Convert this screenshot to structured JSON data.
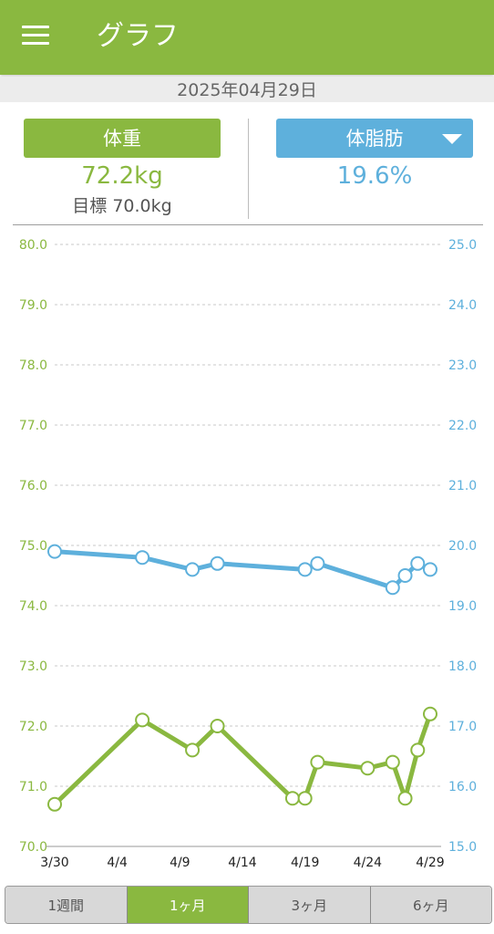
{
  "header": {
    "title": "グラフ",
    "menu_icon": "hamburger-menu-icon"
  },
  "date": "2025年04月29日",
  "metrics": {
    "weight": {
      "label": "体重",
      "value": "72.2kg",
      "target": "目標 70.0kg",
      "color": "#8ab840"
    },
    "body_fat": {
      "label": "体脂肪",
      "value": "19.6%",
      "color": "#5eb0dc",
      "dropdown_icon": "caret-down-icon"
    }
  },
  "tabs": [
    {
      "label": "1週間",
      "active": false
    },
    {
      "label": "1ヶ月",
      "active": true
    },
    {
      "label": "3ヶ月",
      "active": false
    },
    {
      "label": "6ヶ月",
      "active": false
    }
  ],
  "chart_data": {
    "type": "line",
    "grid": true,
    "x_range": [
      0,
      30
    ],
    "x_ticks": [
      {
        "day": 0,
        "label": "3/30"
      },
      {
        "day": 5,
        "label": "4/4"
      },
      {
        "day": 10,
        "label": "4/9"
      },
      {
        "day": 15,
        "label": "4/14"
      },
      {
        "day": 20,
        "label": "4/19"
      },
      {
        "day": 25,
        "label": "4/24"
      },
      {
        "day": 30,
        "label": "4/29"
      }
    ],
    "y_left": {
      "range": [
        70.0,
        80.0
      ],
      "ticks": [
        "70.0",
        "71.0",
        "72.0",
        "73.0",
        "74.0",
        "75.0",
        "76.0",
        "77.0",
        "78.0",
        "79.0",
        "80.0"
      ],
      "color": "#8ab840"
    },
    "y_right": {
      "range": [
        15.0,
        25.0
      ],
      "ticks": [
        "15.0",
        "16.0",
        "17.0",
        "18.0",
        "19.0",
        "20.0",
        "21.0",
        "22.0",
        "23.0",
        "24.0",
        "25.0"
      ],
      "color": "#5eb0dc"
    },
    "series": [
      {
        "axis": "left",
        "color": "#8ab840",
        "points": [
          [
            0,
            70.7
          ],
          [
            7,
            72.1
          ],
          [
            11,
            71.6
          ],
          [
            13,
            72.0
          ],
          [
            19,
            70.8
          ],
          [
            20,
            70.8
          ],
          [
            21,
            71.4
          ],
          [
            25,
            71.3
          ],
          [
            27,
            71.4
          ],
          [
            28,
            70.8
          ],
          [
            29,
            71.6
          ],
          [
            30,
            72.2
          ]
        ]
      },
      {
        "axis": "right",
        "color": "#5eb0dc",
        "points": [
          [
            0,
            19.9
          ],
          [
            7,
            19.8
          ],
          [
            11,
            19.6
          ],
          [
            13,
            19.7
          ],
          [
            20,
            19.6
          ],
          [
            21,
            19.7
          ],
          [
            27,
            19.3
          ],
          [
            28,
            19.5
          ],
          [
            29,
            19.7
          ],
          [
            30,
            19.6
          ]
        ]
      }
    ]
  }
}
